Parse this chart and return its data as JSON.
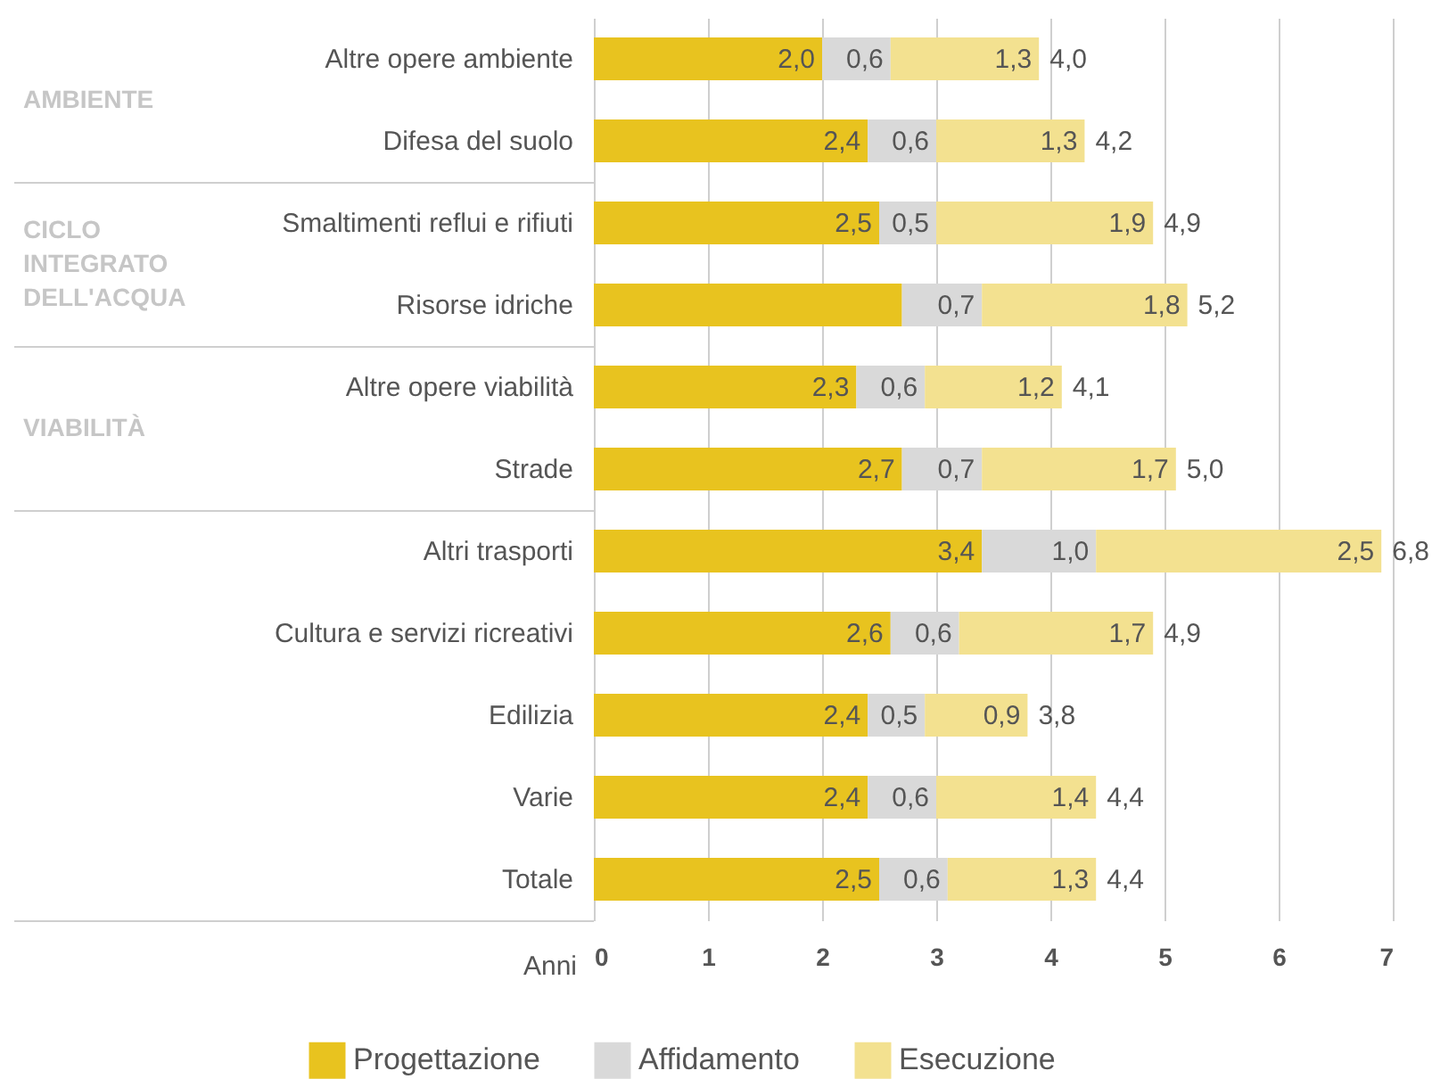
{
  "chart_data": {
    "type": "bar",
    "orientation": "horizontal",
    "stacked": true,
    "categories": [
      "Altre opere ambiente",
      "Difesa del suolo",
      "Smaltimenti reflui e rifiuti",
      "Risorse idriche",
      "Altre opere viabilità",
      "Strade",
      "Altri trasporti",
      "Cultura e servizi ricreativi",
      "Edilizia",
      "Varie",
      "Totale"
    ],
    "series": [
      {
        "name": "Progettazione",
        "color": "#e8c31f",
        "values": [
          2.0,
          2.4,
          2.5,
          2.7,
          2.3,
          2.7,
          3.4,
          2.6,
          2.4,
          2.4,
          2.5
        ],
        "value_labels": [
          "2,0",
          "2,4",
          "2,5",
          null,
          "2,3",
          "2,7",
          "3,4",
          "2,6",
          "2,4",
          "2,4",
          "2,5"
        ]
      },
      {
        "name": "Affidamento",
        "color": "#d9d9d9",
        "values": [
          0.6,
          0.6,
          0.5,
          0.7,
          0.6,
          0.7,
          1.0,
          0.6,
          0.5,
          0.6,
          0.6
        ],
        "value_labels": [
          "0,6",
          "0,6",
          "0,5",
          "0,7",
          "0,6",
          "0,7",
          "1,0",
          "0,6",
          "0,5",
          "0,6",
          "0,6"
        ]
      },
      {
        "name": "Esecuzione",
        "color": "#f3e190",
        "values": [
          1.3,
          1.3,
          1.9,
          1.8,
          1.2,
          1.7,
          2.5,
          1.7,
          0.9,
          1.4,
          1.3
        ],
        "value_labels": [
          "1,3",
          "1,3",
          "1,9",
          "1,8",
          "1,2",
          "1,7",
          "2,5",
          "1,7",
          "0,9",
          "1,4",
          "1,3"
        ]
      }
    ],
    "totals": [
      "4,0",
      "4,2",
      "4,9",
      "5,2",
      "4,1",
      "5,0",
      "6,8",
      "4,9",
      "3,8",
      "4,4",
      "4,4"
    ],
    "xlabel": "Anni",
    "xlim": [
      0,
      7
    ],
    "xticks": [
      0,
      1,
      2,
      3,
      4,
      5,
      6,
      7
    ],
    "grid": "x",
    "legend": "bottom",
    "annotations": [
      "AMBIENTE",
      "CICLO INTEGRATO DELL'ACQUA",
      "VIABILITÀ"
    ]
  }
}
